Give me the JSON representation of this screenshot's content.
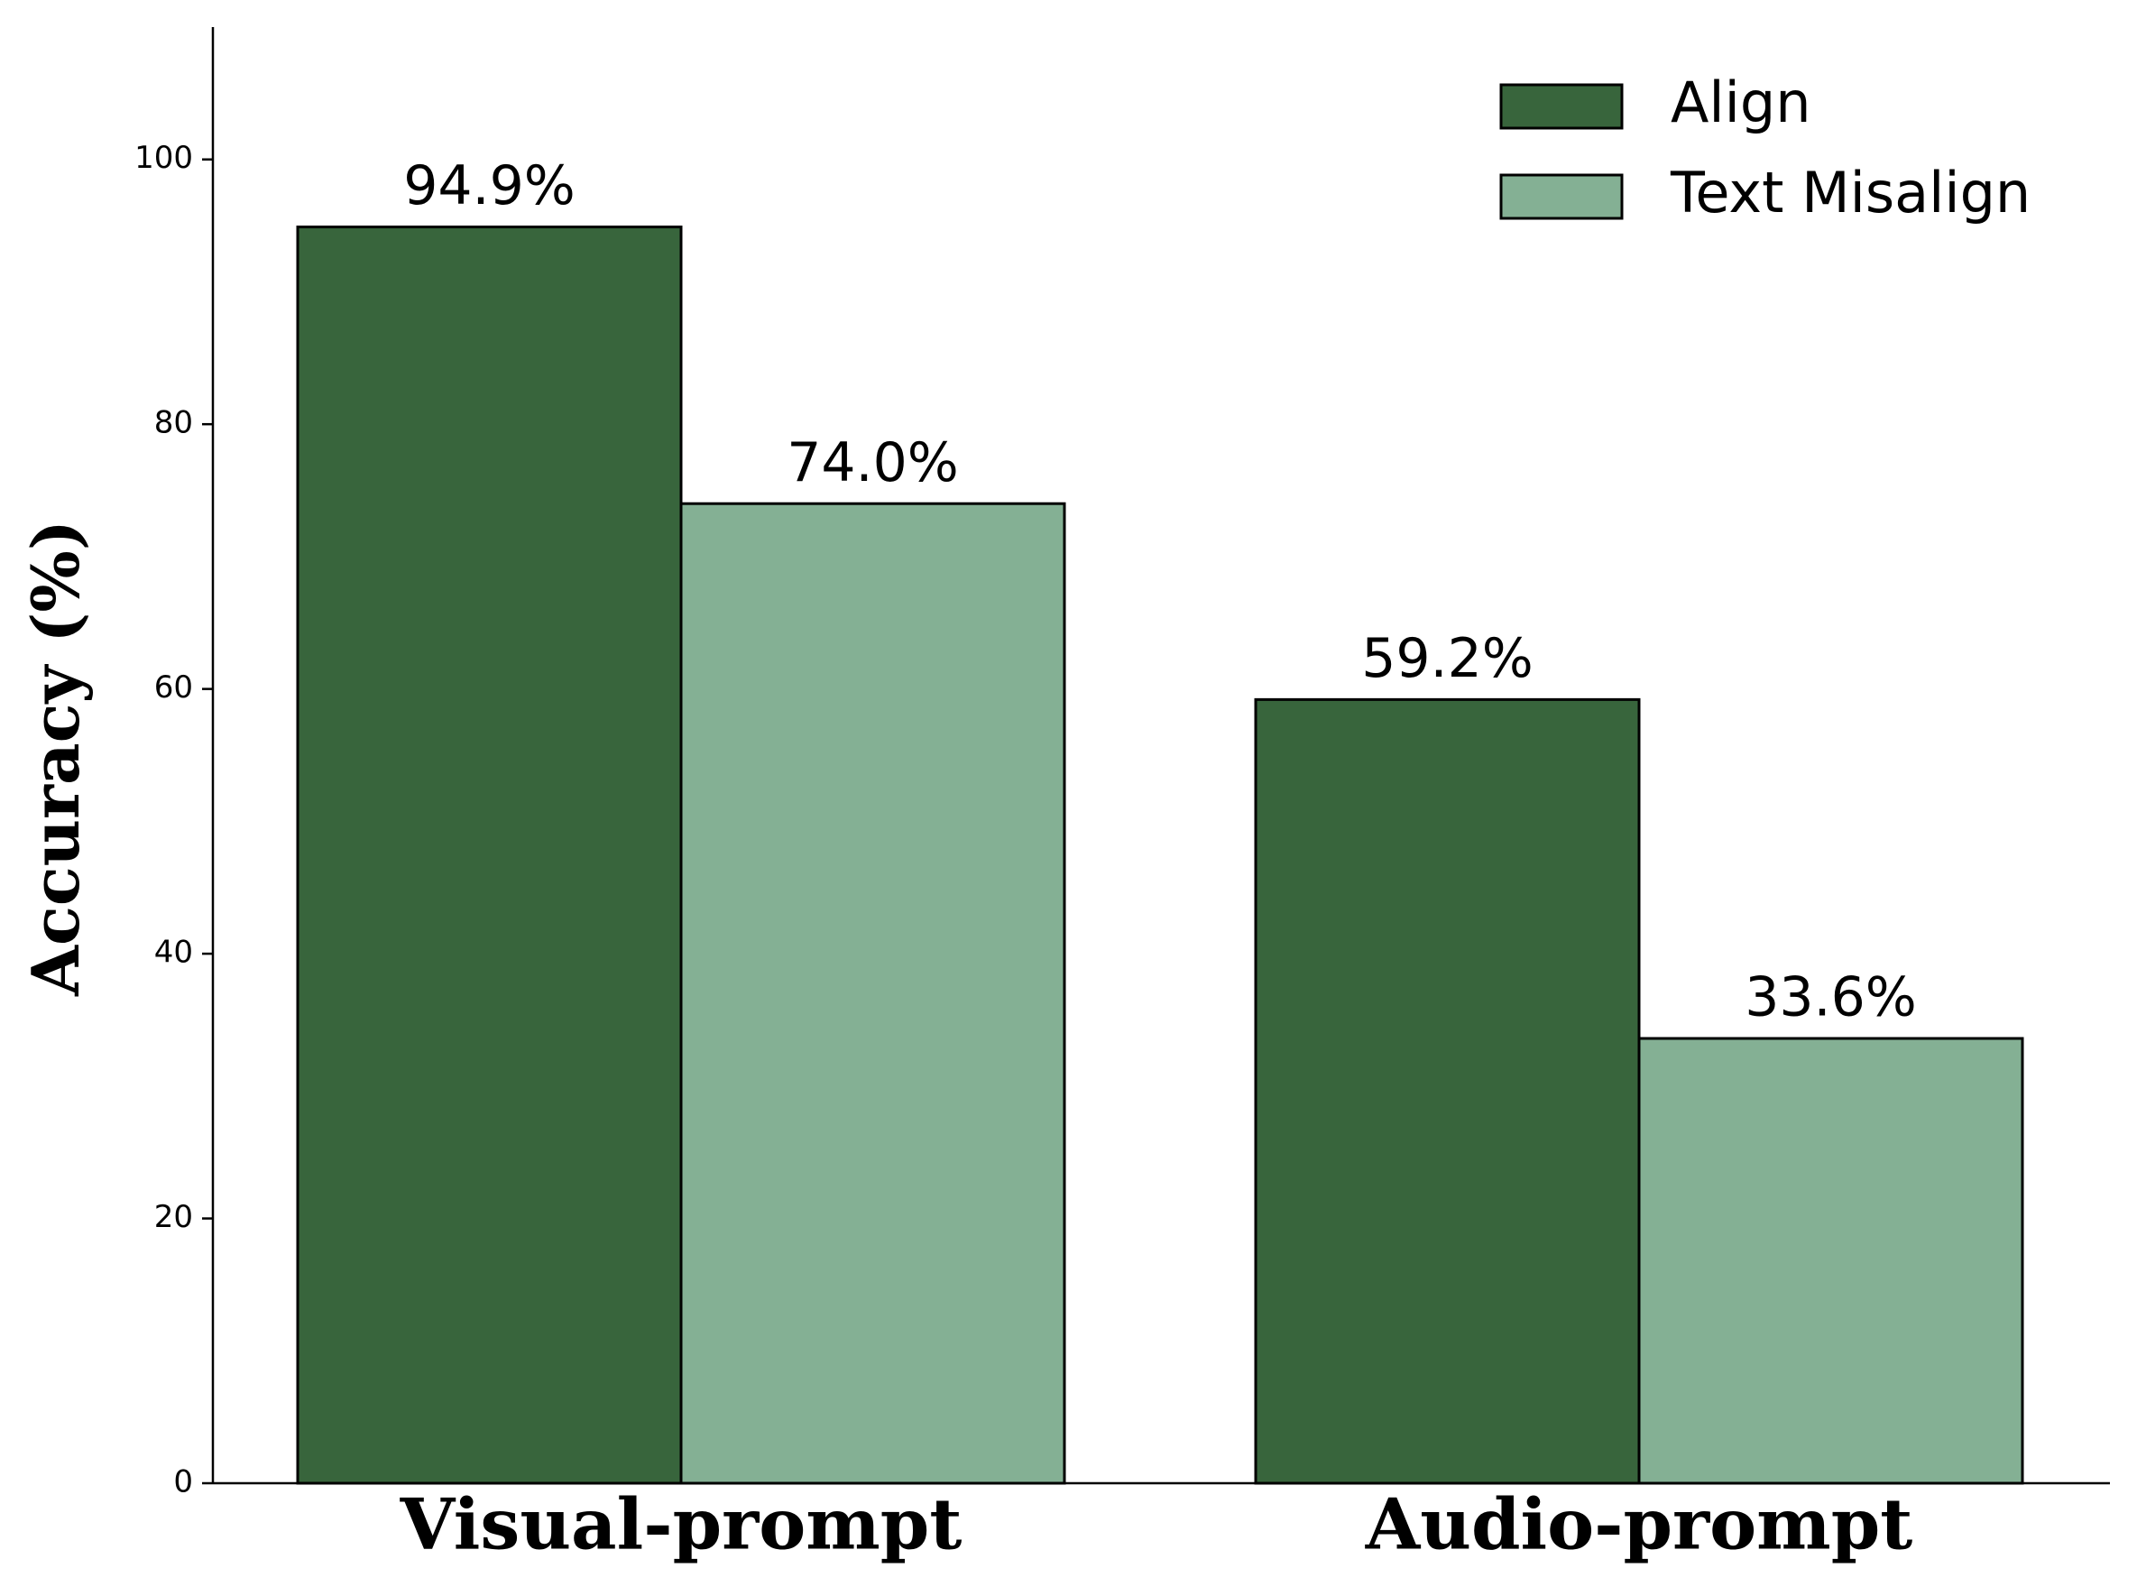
{
  "chart_data": {
    "type": "bar",
    "y_label": "Accuracy (%)",
    "categories": [
      "Visual-prompt",
      "Audio-prompt"
    ],
    "series": [
      {
        "name": "Align",
        "color": "#38653c",
        "values": [
          94.9,
          59.2
        ],
        "value_labels": [
          "94.9%",
          "59.2%"
        ]
      },
      {
        "name": "Text Misalign",
        "color": "#84b094",
        "values": [
          74.0,
          33.6
        ],
        "value_labels": [
          "74.0%",
          "33.6%"
        ]
      }
    ],
    "ylim": [
      0,
      110
    ],
    "yticks": [
      0,
      20,
      40,
      60,
      80,
      100
    ],
    "grid": false,
    "legend": "upper right"
  }
}
